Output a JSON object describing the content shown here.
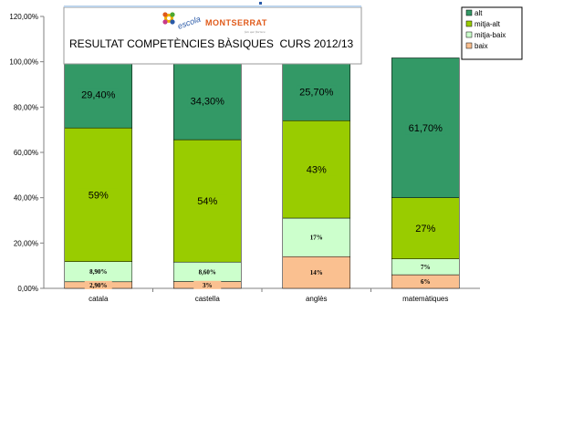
{
  "chart_data": {
    "type": "bar",
    "stacked": true,
    "title": "RESULTAT COMPETÈNCIES BÀSIQUES  CURS 2012/13",
    "categories": [
      "catala",
      "castella",
      "anglès",
      "matemàtiques"
    ],
    "series": [
      {
        "name": "baix",
        "values": [
          2.9,
          3.0,
          14.0,
          6.0
        ],
        "labels": [
          "2,90%",
          "3%",
          "14%",
          "6%"
        ],
        "color": "#fac090"
      },
      {
        "name": "mitja-baix",
        "values": [
          8.9,
          8.6,
          17.0,
          7.0
        ],
        "labels": [
          "8,90%",
          "8,60%",
          "17%",
          "7%"
        ],
        "color": "#ccffcc"
      },
      {
        "name": "mitja-alt",
        "values": [
          59.0,
          54.0,
          43.0,
          27.0
        ],
        "labels": [
          "59%",
          "54%",
          "43%",
          "27%"
        ],
        "color": "#99cc00"
      },
      {
        "name": "alt",
        "values": [
          29.4,
          34.3,
          25.7,
          61.7
        ],
        "labels": [
          "29,40%",
          "34,30%",
          "25,70%",
          "61,70%"
        ],
        "color": "#339966"
      }
    ],
    "ylim": [
      0,
      120
    ],
    "yticks": [
      "0,00%",
      "20,00%",
      "40,00%",
      "60,00%",
      "80,00%",
      "100,00%",
      "120,00%"
    ],
    "legend_position": "top-right",
    "grid": false
  },
  "logo": {
    "school_word": "escola",
    "name": "MONTSERRAT",
    "tagline": "fem que florisca",
    "colors": {
      "name": "#e05a1a",
      "school_word": "#2a5aa8"
    }
  },
  "colors": {
    "axis": "#808080",
    "border": "#000000"
  }
}
